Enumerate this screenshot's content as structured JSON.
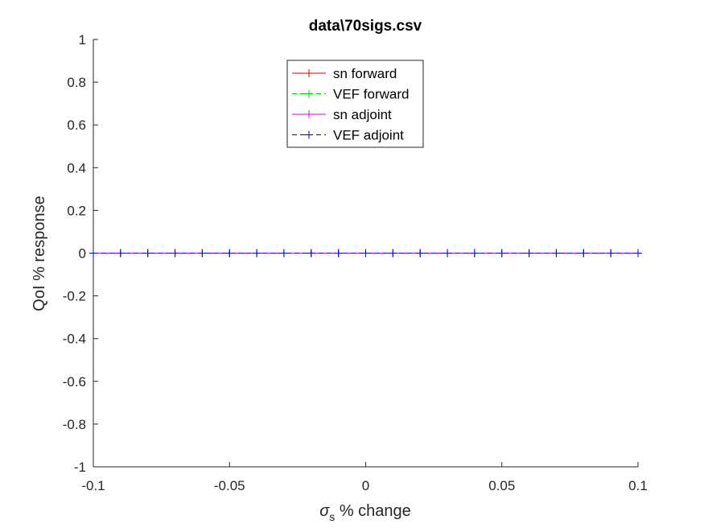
{
  "chart_data": {
    "type": "line",
    "title": "data\\70sigs.csv",
    "xlabel_symbol": "σ",
    "xlabel_subscript": "s",
    "xlabel_rest": " % change",
    "ylabel": "QoI % response",
    "xlim": [
      -0.1,
      0.1
    ],
    "ylim": [
      -1,
      1
    ],
    "xticks": [
      -0.1,
      -0.05,
      0,
      0.05,
      0.1
    ],
    "xtick_labels": [
      "-0.1",
      "-0.05",
      "0",
      "0.05",
      "0.1"
    ],
    "yticks": [
      -1,
      -0.8,
      -0.6,
      -0.4,
      -0.2,
      0,
      0.2,
      0.4,
      0.6,
      0.8,
      1
    ],
    "ytick_labels": [
      "-1",
      "-0.8",
      "-0.6",
      "-0.4",
      "-0.2",
      "0",
      "0.2",
      "0.4",
      "0.6",
      "0.8",
      "1"
    ],
    "grid": false,
    "legend_position": "top-center",
    "x": [
      -0.1,
      -0.09,
      -0.08,
      -0.07,
      -0.06,
      -0.05,
      -0.04,
      -0.03,
      -0.02,
      -0.01,
      0,
      0.01,
      0.02,
      0.03,
      0.04,
      0.05,
      0.06,
      0.07,
      0.08,
      0.09,
      0.1
    ],
    "series": [
      {
        "name": "sn forward",
        "color": "#e00000",
        "dash": "solid",
        "marker": "plus",
        "values": [
          0,
          0,
          0,
          0,
          0,
          0,
          0,
          0,
          0,
          0,
          0,
          0,
          0,
          0,
          0,
          0,
          0,
          0,
          0,
          0,
          0
        ]
      },
      {
        "name": "VEF forward",
        "color": "#00cc00",
        "dash": "dashed",
        "marker": "plus",
        "values": [
          0,
          0,
          0,
          0,
          0,
          0,
          0,
          0,
          0,
          0,
          0,
          0,
          0,
          0,
          0,
          0,
          0,
          0,
          0,
          0,
          0
        ]
      },
      {
        "name": "sn adjoint",
        "color": "#e000e0",
        "dash": "solid",
        "marker": "plus",
        "values": [
          0,
          0,
          0,
          0,
          0,
          0,
          0,
          0,
          0,
          0,
          0,
          0,
          0,
          0,
          0,
          0,
          0,
          0,
          0,
          0,
          0
        ]
      },
      {
        "name": "VEF adjoint",
        "color": "#0000e0",
        "dash": "dashed",
        "marker": "plus",
        "values": [
          0,
          0,
          0,
          0,
          0,
          0,
          0,
          0,
          0,
          0,
          0,
          0,
          0,
          0,
          0,
          0,
          0,
          0,
          0,
          0,
          0
        ]
      }
    ]
  }
}
